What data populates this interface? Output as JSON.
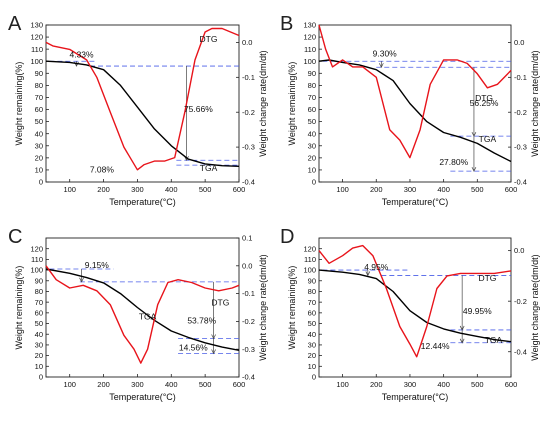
{
  "chart_data": [
    {
      "type": "line",
      "panel_label": "A",
      "xlabel": "Temperature(°C)",
      "ylabel": "Weight remaining(%)",
      "y2label": "Weight change rate(dm/dt)",
      "xlim": [
        30,
        600
      ],
      "ylim": [
        0,
        130
      ],
      "y2lim": [
        -0.4,
        0.05
      ],
      "xticks": [
        100,
        200,
        300,
        400,
        500,
        600
      ],
      "yticks": [
        0,
        10,
        20,
        30,
        40,
        50,
        60,
        70,
        80,
        90,
        100,
        110,
        120,
        130
      ],
      "y2ticks": [
        -0.4,
        -0.3,
        -0.2,
        -0.1,
        0.0
      ],
      "y2tick_labels": [
        "-0.4",
        "-0.3",
        "-0.2",
        "-0.1",
        "0.0"
      ],
      "series": [
        {
          "name": "TGA",
          "axis": "left",
          "color": "#000000",
          "x": [
            30,
            100,
            150,
            200,
            250,
            300,
            350,
            400,
            450,
            500,
            550,
            600
          ],
          "y": [
            100,
            99,
            97,
            93,
            80,
            62,
            44,
            30,
            19,
            15,
            13.5,
            13
          ]
        },
        {
          "name": "DTG",
          "axis": "right",
          "color": "#e8141b",
          "x": [
            30,
            50,
            100,
            150,
            180,
            220,
            260,
            300,
            320,
            350,
            380,
            410,
            440,
            470,
            500,
            520,
            550,
            600
          ],
          "y": [
            0.0,
            -0.01,
            -0.02,
            -0.05,
            -0.1,
            -0.2,
            -0.3,
            -0.365,
            -0.35,
            -0.34,
            -0.34,
            -0.33,
            -0.2,
            -0.05,
            0.03,
            0.04,
            0.04,
            0.02
          ]
        }
      ],
      "annotations": [
        "4.33%",
        "75.66%",
        "7.08%"
      ],
      "series_labels": [
        "DTG",
        "TGA"
      ]
    },
    {
      "type": "line",
      "panel_label": "B",
      "xlabel": "Temperature(°C)",
      "ylabel": "Weight remaining(%)",
      "y2label": "Weight change rate(dm/dt)",
      "xlim": [
        30,
        600
      ],
      "ylim": [
        0,
        130
      ],
      "y2lim": [
        -0.4,
        0.05
      ],
      "xticks": [
        100,
        200,
        300,
        400,
        500,
        600
      ],
      "yticks": [
        0,
        10,
        20,
        30,
        40,
        50,
        60,
        70,
        80,
        90,
        100,
        110,
        120,
        130
      ],
      "y2ticks": [
        -0.4,
        -0.3,
        -0.2,
        -0.1,
        0.0
      ],
      "y2tick_labels": [
        "-0.4",
        "-0.3",
        "-0.2",
        "-0.1",
        "0.0"
      ],
      "series": [
        {
          "name": "TGA",
          "axis": "left",
          "color": "#000000",
          "x": [
            30,
            60,
            100,
            150,
            200,
            250,
            300,
            350,
            400,
            450,
            500,
            550,
            600
          ],
          "y": [
            100,
            101,
            99,
            97,
            93,
            84,
            65,
            50,
            41,
            37,
            32,
            24,
            17
          ]
        },
        {
          "name": "DTG",
          "axis": "right",
          "color": "#e8141b",
          "x": [
            30,
            50,
            70,
            100,
            130,
            160,
            200,
            240,
            270,
            300,
            330,
            360,
            400,
            440,
            470,
            500,
            530,
            560,
            600
          ],
          "y": [
            0.05,
            -0.02,
            -0.07,
            -0.05,
            -0.07,
            -0.07,
            -0.1,
            -0.25,
            -0.28,
            -0.33,
            -0.25,
            -0.12,
            -0.05,
            -0.05,
            -0.06,
            -0.09,
            -0.13,
            -0.12,
            -0.08
          ]
        }
      ],
      "annotations": [
        "9.30%",
        "56.25%",
        "27.80%"
      ],
      "series_labels": [
        "DTG",
        "TGA"
      ]
    },
    {
      "type": "line",
      "panel_label": "C",
      "xlabel": "Temperature(°C)",
      "ylabel": "Weight remaining(%)",
      "y2label": "Weight change rate(dm/dt)",
      "xlim": [
        30,
        600
      ],
      "ylim": [
        0,
        130
      ],
      "y2lim": [
        -0.4,
        0.1
      ],
      "xticks": [
        100,
        200,
        300,
        400,
        500,
        600
      ],
      "yticks": [
        0,
        10,
        20,
        30,
        40,
        50,
        60,
        70,
        80,
        90,
        100,
        110,
        120,
        130
      ],
      "y2ticks": [
        -0.4,
        -0.3,
        -0.2,
        -0.1,
        0.0,
        0.1
      ],
      "y2tick_labels": [
        "-0.4",
        "-0.3",
        "-0.2",
        "-0.1",
        "0.0",
        "0.1"
      ],
      "series": [
        {
          "name": "TGA",
          "axis": "left",
          "color": "#000000",
          "x": [
            30,
            100,
            150,
            200,
            250,
            300,
            350,
            400,
            450,
            500,
            550,
            600
          ],
          "y": [
            101,
            97,
            93,
            88,
            78,
            65,
            53,
            43,
            37,
            32,
            28,
            25
          ]
        },
        {
          "name": "DTG",
          "axis": "right",
          "color": "#e8141b",
          "x": [
            30,
            60,
            100,
            140,
            180,
            220,
            260,
            290,
            310,
            330,
            360,
            390,
            420,
            460,
            500,
            540,
            580,
            600
          ],
          "y": [
            0.0,
            -0.05,
            -0.08,
            -0.07,
            -0.09,
            -0.14,
            -0.25,
            -0.3,
            -0.35,
            -0.3,
            -0.14,
            -0.06,
            -0.05,
            -0.06,
            -0.08,
            -0.09,
            -0.08,
            -0.07
          ]
        }
      ],
      "annotations": [
        "9.15%",
        "53.78%",
        "14.56%"
      ],
      "series_labels": [
        "DTG",
        "TGA"
      ]
    },
    {
      "type": "line",
      "panel_label": "D",
      "xlabel": "Temperature(°C)",
      "ylabel": "Weight remaining(%)",
      "y2label": "Weight change rate(dm/dt)",
      "xlim": [
        30,
        600
      ],
      "ylim": [
        0,
        130
      ],
      "y2lim": [
        -0.5,
        0.05
      ],
      "xticks": [
        100,
        200,
        300,
        400,
        500,
        600
      ],
      "yticks": [
        0,
        10,
        20,
        30,
        40,
        50,
        60,
        70,
        80,
        90,
        100,
        110,
        120,
        130
      ],
      "y2ticks": [
        -0.4,
        -0.2,
        0.0
      ],
      "y2tick_labels": [
        "-0.4",
        "-0.2",
        "0.0"
      ],
      "series": [
        {
          "name": "TGA",
          "axis": "left",
          "color": "#000000",
          "x": [
            30,
            100,
            150,
            200,
            250,
            300,
            350,
            400,
            450,
            500,
            550,
            600
          ],
          "y": [
            100,
            98,
            96,
            92,
            80,
            62,
            51,
            45,
            41,
            38,
            35,
            33
          ]
        },
        {
          "name": "DTG",
          "axis": "right",
          "color": "#e8141b",
          "x": [
            30,
            60,
            100,
            130,
            160,
            190,
            230,
            270,
            300,
            320,
            350,
            380,
            410,
            450,
            500,
            550,
            600
          ],
          "y": [
            0.0,
            -0.05,
            -0.02,
            0.01,
            0.02,
            -0.02,
            -0.15,
            -0.3,
            -0.37,
            -0.42,
            -0.3,
            -0.15,
            -0.1,
            -0.09,
            -0.09,
            -0.09,
            -0.08
          ]
        }
      ],
      "annotations": [
        "4.95%",
        "49.95%",
        "12.44%"
      ],
      "series_labels": [
        "DTG",
        "TGA"
      ]
    }
  ]
}
